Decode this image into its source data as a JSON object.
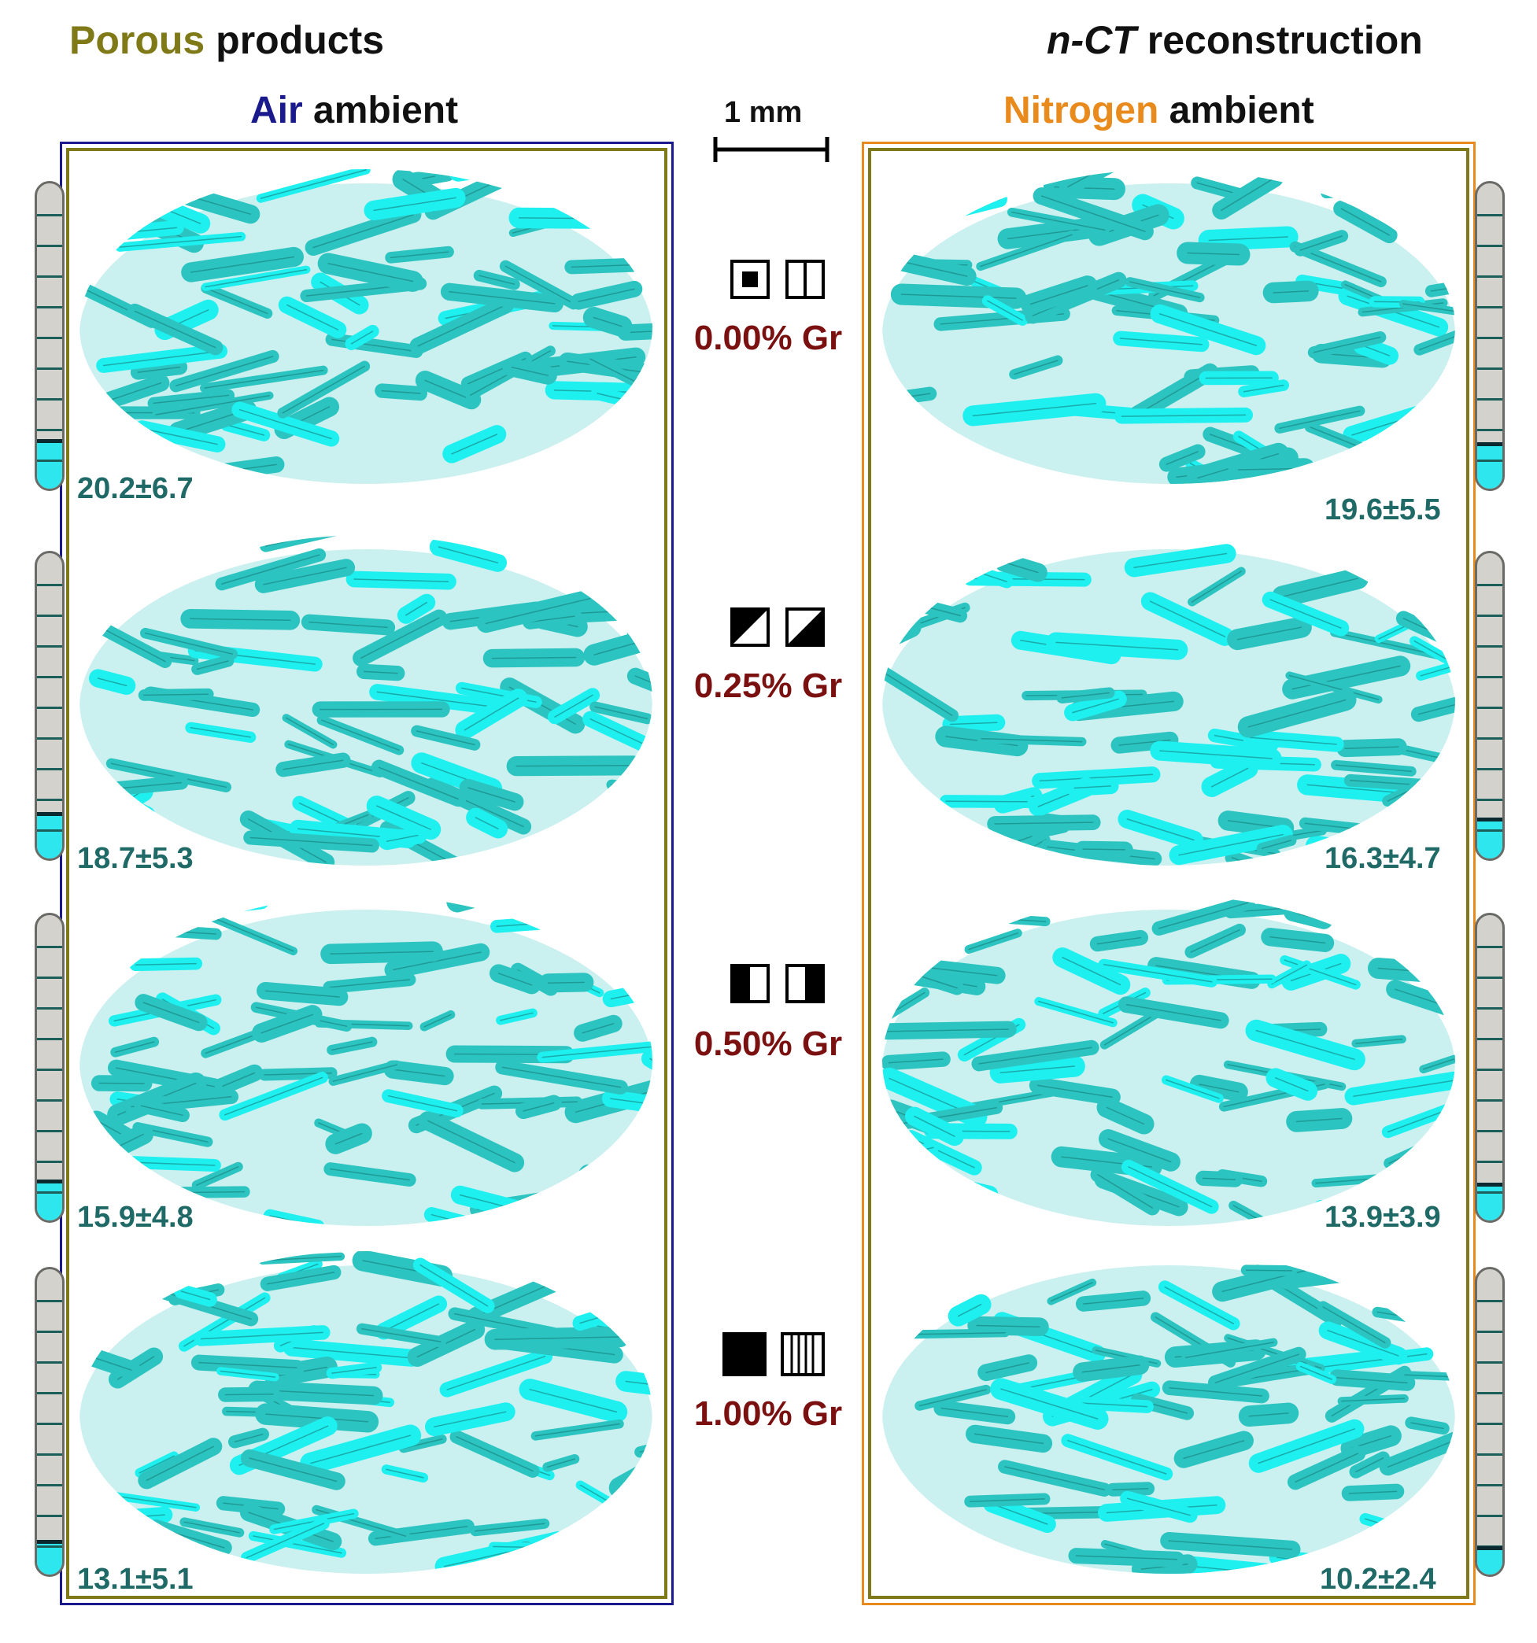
{
  "header": {
    "left_word1": "Porous",
    "left_word2": "products",
    "right_word1": "n-CT",
    "right_word2": "reconstruction"
  },
  "columns": {
    "air": {
      "word1": "Air",
      "word2": "ambient"
    },
    "nitrogen": {
      "word1": "Nitrogen",
      "word2": "ambient"
    }
  },
  "scale_bar": {
    "label": "1 mm"
  },
  "rows": [
    {
      "label": "0.00% Gr",
      "icon_left": "square-with-center-dot-icon",
      "icon_right": "square-split-vertical-icon",
      "air_value": "20.2±6.7",
      "nitrogen_value": "19.6±5.5",
      "air_level": 0.15,
      "nitrogen_level": 0.14
    },
    {
      "label": "0.25% Gr",
      "icon_left": "square-diagonal-lower-icon",
      "icon_right": "square-diagonal-upper-icon",
      "air_value": "18.7±5.3",
      "nitrogen_value": "16.3±4.7",
      "air_level": 0.14,
      "nitrogen_level": 0.12
    },
    {
      "label": "0.50% Gr",
      "icon_left": "square-left-half-icon",
      "icon_right": "square-right-half-icon",
      "air_value": "15.9±4.8",
      "nitrogen_value": "13.9±3.9",
      "air_level": 0.12,
      "nitrogen_level": 0.11
    },
    {
      "label": "1.00% Gr",
      "icon_left": "square-filled-icon",
      "icon_right": "square-vertical-hatch-icon",
      "air_value": "13.1±5.1",
      "nitrogen_value": "10.2±2.4",
      "air_level": 0.1,
      "nitrogen_level": 0.08
    }
  ],
  "colors": {
    "olive": "#7f7a17",
    "navy": "#1a1a8c",
    "orange": "#e88a1c",
    "maroon": "#7a1010",
    "teal_text": "#1f6a66",
    "cyan_light": "#1ef0f0",
    "cyan_mid": "#2cc4c0",
    "cyan_dark": "#177d7a"
  }
}
